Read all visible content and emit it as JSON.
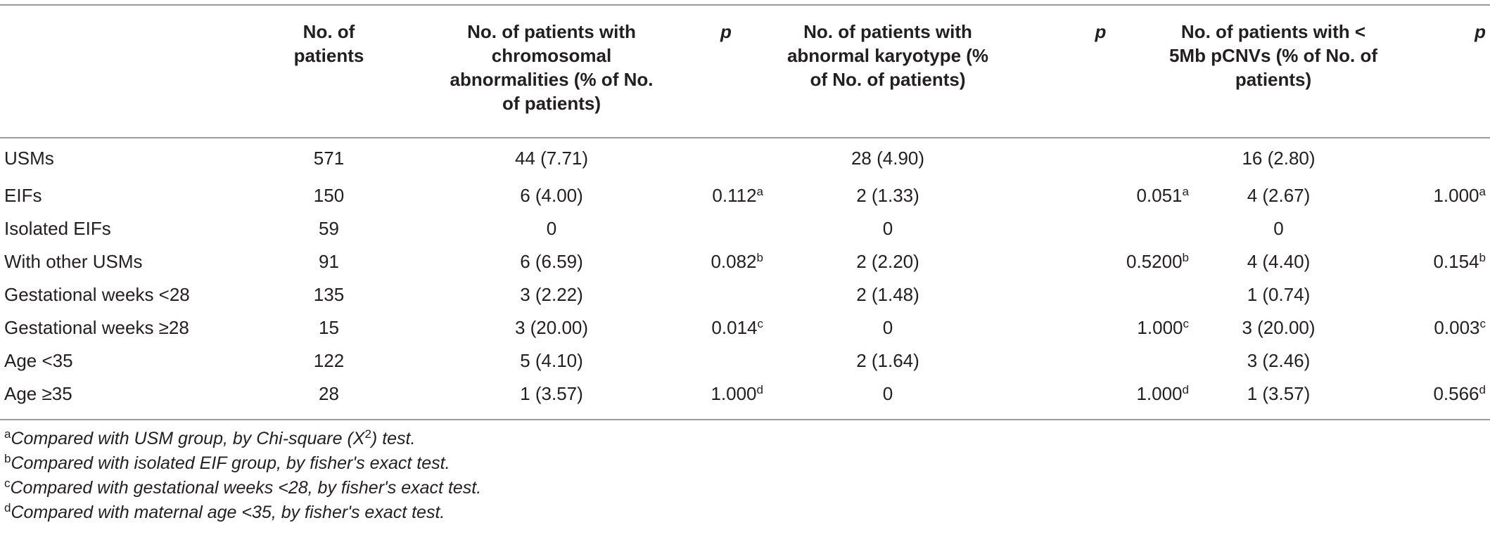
{
  "headers": {
    "label": "",
    "n_patients": "No. of patients",
    "chrom": "No. of patients with chromosomal abnormalities (% of No. of patients)",
    "p1": "p",
    "karyo": "No. of patients with abnormal karyotype (% of No. of patients)",
    "p2": "p",
    "pcnv": "No. of patients with < 5Mb pCNVs (% of No. of patients)",
    "p3": "p"
  },
  "rows": [
    {
      "label": "USMs",
      "n": "571",
      "chrom": "44 (7.71)",
      "p1": "",
      "p1_sup": "",
      "karyo": "28 (4.90)",
      "p2": "",
      "p2_sup": "",
      "pcnv": "16 (2.80)",
      "p3": "",
      "p3_sup": ""
    },
    {
      "label": "EIFs",
      "n": "150",
      "chrom": "6 (4.00)",
      "p1": "0.112",
      "p1_sup": "a",
      "karyo": "2 (1.33)",
      "p2": "0.051",
      "p2_sup": "a",
      "pcnv": "4 (2.67)",
      "p3": "1.000",
      "p3_sup": "a"
    },
    {
      "label": "Isolated EIFs",
      "n": "59",
      "chrom": "0",
      "p1": "",
      "p1_sup": "",
      "karyo": "0",
      "p2": "",
      "p2_sup": "",
      "pcnv": "0",
      "p3": "",
      "p3_sup": ""
    },
    {
      "label": "With other USMs",
      "n": "91",
      "chrom": "6 (6.59)",
      "p1": "0.082",
      "p1_sup": "b",
      "karyo": "2 (2.20)",
      "p2": "0.5200",
      "p2_sup": "b",
      "pcnv": "4 (4.40)",
      "p3": "0.154",
      "p3_sup": "b"
    },
    {
      "label": "Gestational weeks <28",
      "n": "135",
      "chrom": "3 (2.22)",
      "p1": "",
      "p1_sup": "",
      "karyo": "2 (1.48)",
      "p2": "",
      "p2_sup": "",
      "pcnv": "1 (0.74)",
      "p3": "",
      "p3_sup": ""
    },
    {
      "label": "Gestational weeks ≥28",
      "n": "15",
      "chrom": "3 (20.00)",
      "p1": "0.014",
      "p1_sup": "c",
      "karyo": "0",
      "p2": "1.000",
      "p2_sup": "c",
      "pcnv": "3 (20.00)",
      "p3": "0.003",
      "p3_sup": "c"
    },
    {
      "label": "Age <35",
      "n": "122",
      "chrom": "5 (4.10)",
      "p1": "",
      "p1_sup": "",
      "karyo": "2 (1.64)",
      "p2": "",
      "p2_sup": "",
      "pcnv": "3 (2.46)",
      "p3": "",
      "p3_sup": ""
    },
    {
      "label": "Age ≥35",
      "n": "28",
      "chrom": "1 (3.57)",
      "p1": "1.000",
      "p1_sup": "d",
      "karyo": "0",
      "p2": "1.000",
      "p2_sup": "d",
      "pcnv": "1 (3.57)",
      "p3": "0.566",
      "p3_sup": "d"
    }
  ],
  "footnotes": [
    {
      "mark": "a",
      "text_before": "Compared with USM group, by Chi-square (X",
      "sup": "2",
      "text_after": ") test."
    },
    {
      "mark": "b",
      "text_before": "Compared with isolated EIF group, by fisher's exact test.",
      "sup": "",
      "text_after": ""
    },
    {
      "mark": "c",
      "text_before": "Compared with gestational weeks <28, by fisher's exact test.",
      "sup": "",
      "text_after": ""
    },
    {
      "mark": "d",
      "text_before": "Compared with maternal age <35, by fisher's exact test.",
      "sup": "",
      "text_after": ""
    }
  ]
}
